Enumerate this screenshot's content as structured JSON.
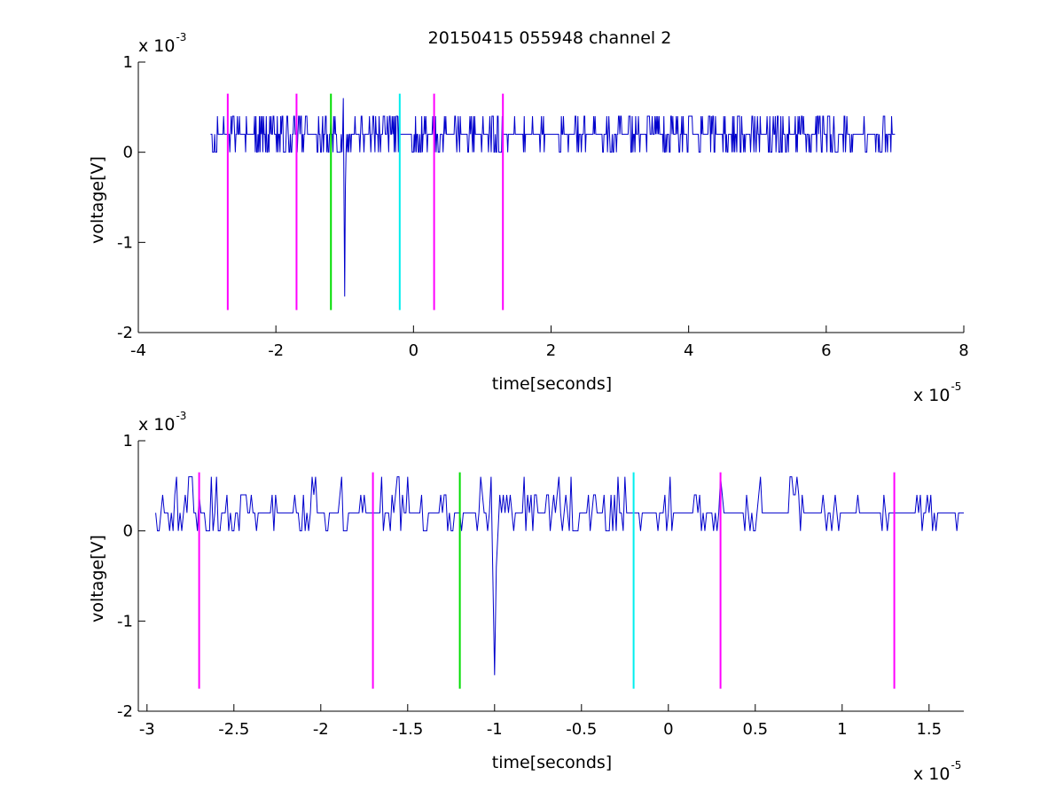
{
  "figure": {
    "title": "20150415 055948 channel 2",
    "background": "#ffffff"
  },
  "colors": {
    "signal": "#0000cc",
    "marker_magenta": "#ff00ff",
    "marker_green": "#00dd00",
    "marker_cyan": "#00eeee",
    "axis": "#000000"
  },
  "chart_data": [
    {
      "type": "line",
      "title": "20150415 055948 channel 2",
      "xlabel": "time[seconds]",
      "ylabel": "voltage[V]",
      "xlim": [
        -4e-05,
        8e-05
      ],
      "ylim": [
        -0.002,
        0.001
      ],
      "x_ticks": [
        -4e-05,
        -2e-05,
        0,
        2e-05,
        4e-05,
        6e-05,
        8e-05
      ],
      "x_tick_labels": [
        "-4",
        "-2",
        "0",
        "2",
        "4",
        "6",
        "8"
      ],
      "x_exponent": {
        "base": "x 10",
        "power": "-5"
      },
      "y_ticks": [
        -0.002,
        -0.001,
        0,
        0.001
      ],
      "y_tick_labels": [
        "-2",
        "-1",
        "0",
        "1"
      ],
      "y_exponent": {
        "base": "x 10",
        "power": "-3"
      },
      "grid": false,
      "series": [
        {
          "color": "#0000cc",
          "x_start": -2.95e-05,
          "x_end": 7e-05,
          "dt": 1e-07,
          "baseline_v": 0.0002,
          "noise_levels_v": [
            -0.0002,
            0,
            0.0002,
            0.0004
          ],
          "spikes": [
            {
              "x": -1e-05,
              "y": -0.0016
            }
          ],
          "y_range_observed": [
            -0.0016,
            0.0006
          ]
        }
      ],
      "markers": [
        {
          "x": -2.7e-05,
          "color": "#ff00ff",
          "y_range": [
            -0.00175,
            0.00065
          ]
        },
        {
          "x": -1.7e-05,
          "color": "#ff00ff",
          "y_range": [
            -0.00175,
            0.00065
          ]
        },
        {
          "x": -1.2e-05,
          "color": "#00dd00",
          "y_range": [
            -0.00175,
            0.00065
          ]
        },
        {
          "x": -2e-06,
          "color": "#00eeee",
          "y_range": [
            -0.00175,
            0.00065
          ]
        },
        {
          "x": 3e-06,
          "color": "#ff00ff",
          "y_range": [
            -0.00175,
            0.00065
          ]
        },
        {
          "x": 1.3e-05,
          "color": "#ff00ff",
          "y_range": [
            -0.00175,
            0.00065
          ]
        }
      ]
    },
    {
      "type": "line",
      "title": "",
      "xlabel": "time[seconds]",
      "ylabel": "voltage[V]",
      "xlim": [
        -3.05e-05,
        1.7e-05
      ],
      "ylim": [
        -0.002,
        0.001
      ],
      "x_ticks": [
        -3e-05,
        -2.5e-05,
        -2e-05,
        -1.5e-05,
        -1e-05,
        -5e-06,
        0,
        5e-06,
        1e-05,
        1.5e-05
      ],
      "x_tick_labels": [
        "-3",
        "-2.5",
        "-2",
        "-1.5",
        "-1",
        "-0.5",
        "0",
        "0.5",
        "1",
        "1.5"
      ],
      "x_exponent": {
        "base": "x 10",
        "power": "-5"
      },
      "y_ticks": [
        -0.002,
        -0.001,
        0,
        0.001
      ],
      "y_tick_labels": [
        "-2",
        "-1",
        "0",
        "1"
      ],
      "y_exponent": {
        "base": "x 10",
        "power": "-3"
      },
      "grid": false,
      "series": [
        {
          "color": "#0000cc",
          "x_start": -2.95e-05,
          "x_end": 1.7e-05,
          "dt": 1e-07,
          "baseline_v": 0.0002,
          "noise_levels_v": [
            -0.0002,
            0,
            0.0002,
            0.0004,
            0.0006
          ],
          "spikes": [
            {
              "x": -1e-05,
              "y": -0.0016
            }
          ],
          "y_range_observed": [
            -0.0016,
            0.0006
          ]
        }
      ],
      "markers": [
        {
          "x": -2.7e-05,
          "color": "#ff00ff",
          "y_range": [
            -0.00175,
            0.00065
          ]
        },
        {
          "x": -1.7e-05,
          "color": "#ff00ff",
          "y_range": [
            -0.00175,
            0.00065
          ]
        },
        {
          "x": -1.2e-05,
          "color": "#00dd00",
          "y_range": [
            -0.00175,
            0.00065
          ]
        },
        {
          "x": -2e-06,
          "color": "#00eeee",
          "y_range": [
            -0.00175,
            0.00065
          ]
        },
        {
          "x": 3e-06,
          "color": "#ff00ff",
          "y_range": [
            -0.00175,
            0.00065
          ]
        },
        {
          "x": 1.3e-05,
          "color": "#ff00ff",
          "y_range": [
            -0.00175,
            0.00065
          ]
        }
      ]
    }
  ]
}
